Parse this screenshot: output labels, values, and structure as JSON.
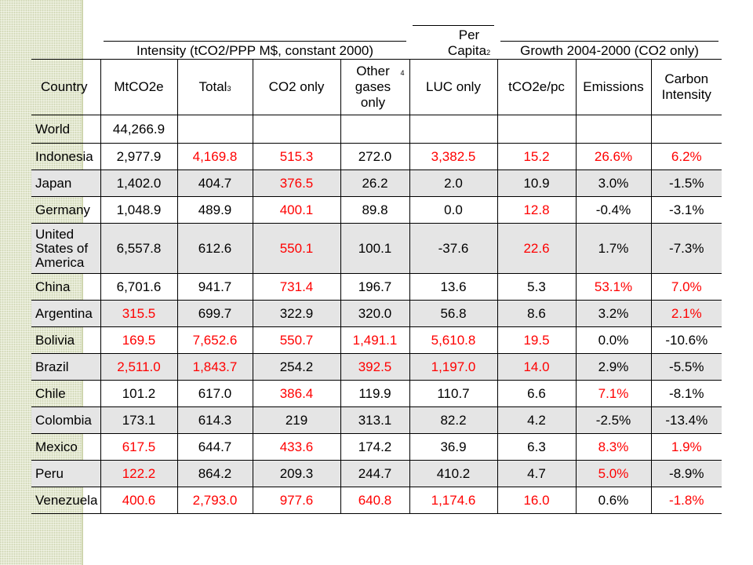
{
  "super_headers": {
    "intensity": "Intensity (tCO2/PPP M$, constant 2000)",
    "per_capita": "Per Capita",
    "per_capita_note": "2",
    "growth": "Growth 2004-2000 (CO2 only)"
  },
  "columns": [
    {
      "label": "Country",
      "note": ""
    },
    {
      "label": "MtCO2e",
      "note": ""
    },
    {
      "label": "Total",
      "note": "3"
    },
    {
      "label": "CO2 only",
      "note": ""
    },
    {
      "label": "Other gases only",
      "note": "4"
    },
    {
      "label": "LUC only",
      "note": ""
    },
    {
      "label": "tCO2e/pc",
      "note": ""
    },
    {
      "label": "Emissions",
      "note": ""
    },
    {
      "label": "Carbon Intensity",
      "note": ""
    }
  ],
  "highlight_color": "#ff0000",
  "rows": [
    {
      "cells": [
        "World",
        "44,266.9",
        "",
        "",
        "",
        "",
        "",
        "",
        ""
      ],
      "red": []
    },
    {
      "cells": [
        "Indonesia",
        "2,977.9",
        "4,169.8",
        "515.3",
        "272.0",
        "3,382.5",
        "15.2",
        "26.6%",
        "6.2%"
      ],
      "red": [
        2,
        3,
        5,
        6,
        7,
        8
      ]
    },
    {
      "cells": [
        "Japan",
        "1,402.0",
        "404.7",
        "376.5",
        "26.2",
        "2.0",
        "10.9",
        "3.0%",
        "-1.5%"
      ],
      "red": [
        3
      ]
    },
    {
      "cells": [
        "Germany",
        "1,048.9",
        "489.9",
        "400.1",
        "89.8",
        "0.0",
        "12.8",
        "-0.4%",
        "-3.1%"
      ],
      "red": [
        3,
        6
      ]
    },
    {
      "cells": [
        "United States of America",
        "6,557.8",
        "612.6",
        "550.1",
        "100.1",
        "-37.6",
        "22.6",
        "1.7%",
        "-7.3%"
      ],
      "red": [
        3,
        6
      ]
    },
    {
      "cells": [
        "China",
        "6,701.6",
        "941.7",
        "731.4",
        "196.7",
        "13.6",
        "5.3",
        "53.1%",
        "7.0%"
      ],
      "red": [
        3,
        7,
        8
      ]
    },
    {
      "cells": [
        "Argentina",
        "315.5",
        "699.7",
        "322.9",
        "320.0",
        "56.8",
        "8.6",
        "3.2%",
        "2.1%"
      ],
      "red": [
        1,
        8
      ]
    },
    {
      "cells": [
        "Bolivia",
        "169.5",
        "7,652.6",
        "550.7",
        "1,491.1",
        "5,610.8",
        "19.5",
        "0.0%",
        "-10.6%"
      ],
      "red": [
        1,
        2,
        3,
        4,
        5,
        6
      ]
    },
    {
      "cells": [
        "Brazil",
        "2,511.0",
        "1,843.7",
        "254.2",
        "392.5",
        "1,197.0",
        "14.0",
        "2.9%",
        "-5.5%"
      ],
      "red": [
        1,
        2,
        4,
        5,
        6
      ]
    },
    {
      "cells": [
        "Chile",
        "101.2",
        "617.0",
        "386.4",
        "119.9",
        "110.7",
        "6.6",
        "7.1%",
        "-8.1%"
      ],
      "red": [
        3,
        7
      ]
    },
    {
      "cells": [
        "Colombia",
        "173.1",
        "614.3",
        "219",
        "313.1",
        "82.2",
        "4.2",
        "-2.5%",
        "-13.4%"
      ],
      "red": []
    },
    {
      "cells": [
        "Mexico",
        "617.5",
        "644.7",
        "433.6",
        "174.2",
        "36.9",
        "6.3",
        "8.3%",
        "1.9%"
      ],
      "red": [
        1,
        3,
        7,
        8
      ]
    },
    {
      "cells": [
        "Peru",
        "122.2",
        "864.2",
        "209.3",
        "244.7",
        "410.2",
        "4.7",
        "5.0%",
        "-8.9%"
      ],
      "red": [
        1,
        7
      ]
    },
    {
      "cells": [
        "Venezuela",
        "400.6",
        "2,793.0",
        "977.6",
        "640.8",
        "1,174.6",
        "16.0",
        "0.6%",
        "-1.8%"
      ],
      "red": [
        1,
        2,
        3,
        4,
        5,
        6,
        8
      ]
    }
  ]
}
